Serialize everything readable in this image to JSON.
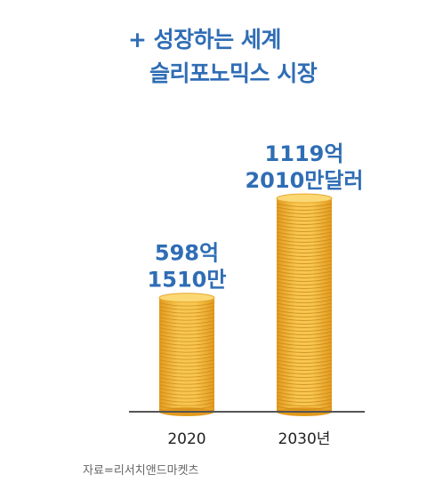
{
  "title": {
    "line1": "+ 성장하는 세계",
    "line2": "슬리포노믹스 시장"
  },
  "colors": {
    "accent": "#2f6db5",
    "coin_light": "#f8c750",
    "coin_dark": "#e29a1d",
    "axis": "#555555"
  },
  "source": "자료=리서치앤드마켓츠",
  "chart_data": {
    "type": "bar",
    "categories": [
      "2020",
      "2030년"
    ],
    "values": [
      598.151,
      1119.201
    ],
    "unit": "억달러",
    "data_labels": [
      {
        "line1": "598억",
        "line2": "1510만"
      },
      {
        "line1": "1119억",
        "line2": "2010만달러"
      }
    ],
    "ylim": [
      0,
      1300
    ],
    "grid": false,
    "legend": "none"
  }
}
